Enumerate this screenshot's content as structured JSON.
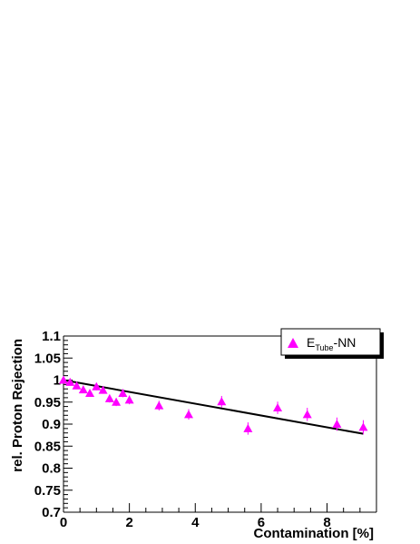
{
  "chart_data": {
    "type": "scatter",
    "xlabel": "Contamination [%]",
    "ylabel": "rel. Proton Rejection",
    "xlim": [
      0,
      9.5
    ],
    "ylim": [
      0.7,
      1.1
    ],
    "x_ticks": [
      0,
      2,
      4,
      6,
      8
    ],
    "x_tick_labels": [
      "0",
      "2",
      "4",
      "6",
      "8"
    ],
    "y_ticks": [
      0.7,
      0.75,
      0.8,
      0.85,
      0.9,
      0.95,
      1.0,
      1.05,
      1.1
    ],
    "y_tick_labels": [
      "0.7",
      "0.75",
      "0.8",
      "0.85",
      "0.9",
      "0.95",
      "1",
      "1.05",
      "1.1"
    ],
    "legend_position": "top-right",
    "marker_color": "#ff00ff",
    "series": [
      {
        "name_main": "E",
        "name_sub": "Tube",
        "name_suffix": "-NN",
        "points": [
          {
            "x": 0.0,
            "y": 1.0,
            "err": 0.007
          },
          {
            "x": 0.2,
            "y": 0.995,
            "err": 0.007
          },
          {
            "x": 0.4,
            "y": 0.987,
            "err": 0.007
          },
          {
            "x": 0.6,
            "y": 0.978,
            "err": 0.007
          },
          {
            "x": 0.8,
            "y": 0.97,
            "err": 0.008
          },
          {
            "x": 1.0,
            "y": 0.985,
            "err": 0.008
          },
          {
            "x": 1.2,
            "y": 0.977,
            "err": 0.008
          },
          {
            "x": 1.4,
            "y": 0.958,
            "err": 0.009
          },
          {
            "x": 1.6,
            "y": 0.95,
            "err": 0.009
          },
          {
            "x": 1.8,
            "y": 0.97,
            "err": 0.009
          },
          {
            "x": 2.0,
            "y": 0.955,
            "err": 0.01
          },
          {
            "x": 2.9,
            "y": 0.942,
            "err": 0.011
          },
          {
            "x": 3.8,
            "y": 0.922,
            "err": 0.012
          },
          {
            "x": 4.8,
            "y": 0.951,
            "err": 0.013
          },
          {
            "x": 5.6,
            "y": 0.89,
            "err": 0.014
          },
          {
            "x": 6.5,
            "y": 0.937,
            "err": 0.014
          },
          {
            "x": 7.4,
            "y": 0.922,
            "err": 0.015
          },
          {
            "x": 8.3,
            "y": 0.9,
            "err": 0.015
          },
          {
            "x": 9.1,
            "y": 0.893,
            "err": 0.016
          }
        ]
      }
    ],
    "fit_line": {
      "x": [
        0,
        9.1
      ],
      "y": [
        1.0,
        0.878
      ]
    }
  }
}
